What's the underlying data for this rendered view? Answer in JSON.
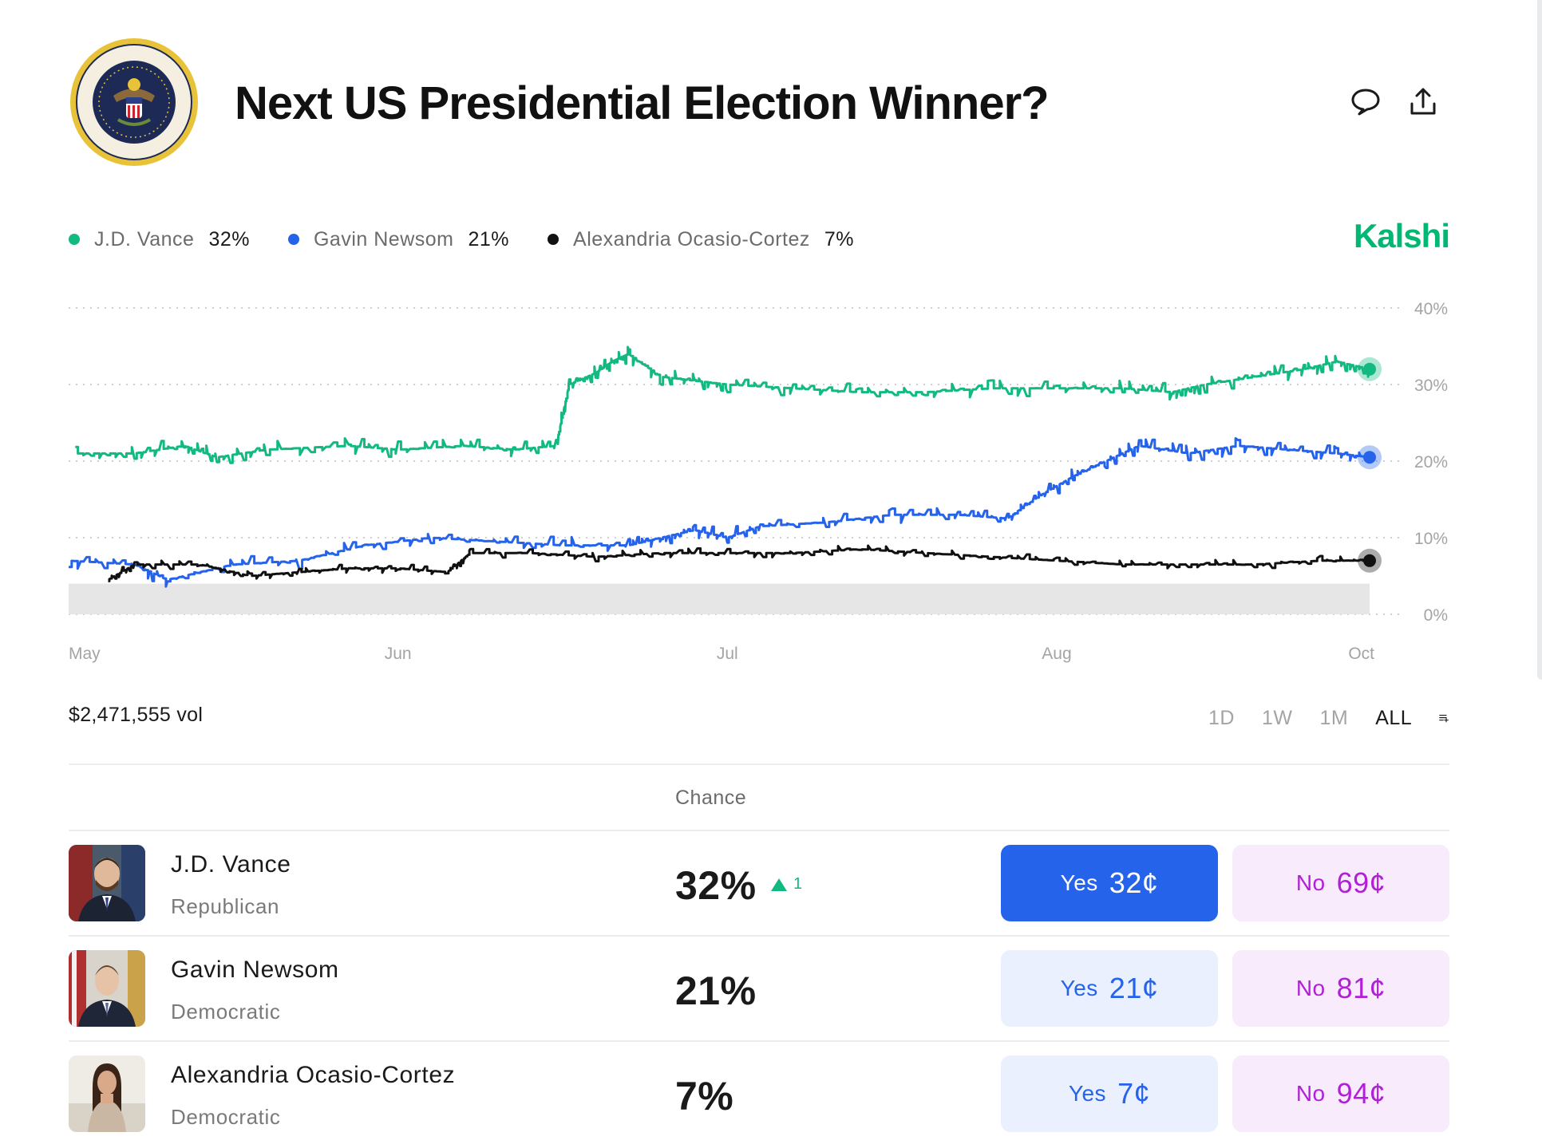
{
  "market": {
    "title": "Next US Presidential Election Winner?",
    "brand": "Kalshi",
    "volume": "$2,471,555 vol"
  },
  "icons": {
    "seal": "presidential-seal",
    "comment": "comment-icon",
    "share": "share-icon",
    "add_to_list": "add-to-list-icon"
  },
  "colors": {
    "vance": "#12b981",
    "newsom": "#2563eb",
    "aoc": "#111111",
    "brand": "#00b874",
    "yes": "#2563eb",
    "no": "#b11fd6"
  },
  "legend": [
    {
      "name": "J.D. Vance",
      "value": "32%",
      "color": "#12b981"
    },
    {
      "name": "Gavin Newsom",
      "value": "21%",
      "color": "#2563eb"
    },
    {
      "name": "Alexandria Ocasio-Cortez",
      "value": "7%",
      "color": "#111111"
    }
  ],
  "time_ranges": [
    "1D",
    "1W",
    "1M",
    "ALL"
  ],
  "active_range": "ALL",
  "table": {
    "chance_header": "Chance",
    "rows": [
      {
        "name": "J.D. Vance",
        "party": "Republican",
        "chance": "32%",
        "delta": "1",
        "yes_label": "Yes",
        "yes_price": "32¢",
        "no_label": "No",
        "no_price": "69¢"
      },
      {
        "name": "Gavin Newsom",
        "party": "Democratic",
        "chance": "21%",
        "delta": "",
        "yes_label": "Yes",
        "yes_price": "21¢",
        "no_label": "No",
        "no_price": "81¢"
      },
      {
        "name": "Alexandria Ocasio-Cortez",
        "party": "Democratic",
        "chance": "7%",
        "delta": "",
        "yes_label": "Yes",
        "yes_price": "7¢",
        "no_label": "No",
        "no_price": "94¢"
      }
    ]
  },
  "chart_data": {
    "type": "line",
    "title": "",
    "xlabel": "",
    "ylabel": "",
    "ylim": [
      0,
      40
    ],
    "yticks": [
      "0%",
      "10%",
      "20%",
      "30%",
      "40%"
    ],
    "x": [
      0,
      0.5,
      1,
      1.5,
      2,
      2.5,
      3,
      3.5,
      3.95
    ],
    "xlabels": [
      "May",
      "Jun",
      "Jul",
      "Aug",
      "Oct"
    ],
    "xlabel_positions": [
      0,
      1,
      2,
      3,
      3.95
    ],
    "series": [
      {
        "name": "J.D. Vance",
        "color": "#12b981",
        "points": [
          [
            0.02,
            21
          ],
          [
            0.2,
            21
          ],
          [
            0.35,
            22
          ],
          [
            0.45,
            20.5
          ],
          [
            0.6,
            21.5
          ],
          [
            0.85,
            22
          ],
          [
            1.0,
            21.5
          ],
          [
            1.2,
            22
          ],
          [
            1.35,
            21.5
          ],
          [
            1.48,
            22
          ],
          [
            1.52,
            30
          ],
          [
            1.6,
            31.5
          ],
          [
            1.65,
            33
          ],
          [
            1.7,
            34
          ],
          [
            1.8,
            31
          ],
          [
            1.9,
            30.5
          ],
          [
            2.0,
            30
          ],
          [
            2.2,
            29.5
          ],
          [
            2.4,
            29
          ],
          [
            2.6,
            29
          ],
          [
            2.8,
            29.5
          ],
          [
            3.0,
            29.5
          ],
          [
            3.2,
            29.5
          ],
          [
            3.35,
            29
          ],
          [
            3.45,
            30
          ],
          [
            3.6,
            31
          ],
          [
            3.75,
            32
          ],
          [
            3.85,
            33
          ],
          [
            3.95,
            32
          ]
        ]
      },
      {
        "name": "Gavin Newsom",
        "color": "#2563eb",
        "points": [
          [
            0.0,
            7
          ],
          [
            0.2,
            6.5
          ],
          [
            0.3,
            4.5
          ],
          [
            0.5,
            6.5
          ],
          [
            0.7,
            7
          ],
          [
            0.9,
            9
          ],
          [
            1.1,
            10
          ],
          [
            1.3,
            9.5
          ],
          [
            1.5,
            9
          ],
          [
            1.7,
            9
          ],
          [
            1.8,
            10
          ],
          [
            1.9,
            11
          ],
          [
            2.0,
            10
          ],
          [
            2.1,
            11.5
          ],
          [
            2.3,
            12
          ],
          [
            2.5,
            13
          ],
          [
            2.7,
            13
          ],
          [
            2.85,
            12.5
          ],
          [
            2.95,
            15.5
          ],
          [
            3.05,
            18
          ],
          [
            3.15,
            20
          ],
          [
            3.25,
            22
          ],
          [
            3.4,
            21
          ],
          [
            3.55,
            22
          ],
          [
            3.7,
            21.5
          ],
          [
            3.85,
            21
          ],
          [
            3.95,
            20.5
          ]
        ]
      },
      {
        "name": "Alexandria Ocasio-Cortez",
        "color": "#111111",
        "points": [
          [
            0.12,
            4.5
          ],
          [
            0.2,
            6.5
          ],
          [
            0.4,
            6.5
          ],
          [
            0.55,
            5
          ],
          [
            0.7,
            5.5
          ],
          [
            0.85,
            6
          ],
          [
            1.0,
            6
          ],
          [
            1.15,
            5.5
          ],
          [
            1.22,
            8
          ],
          [
            1.4,
            8
          ],
          [
            1.6,
            7.5
          ],
          [
            1.8,
            8
          ],
          [
            2.0,
            8
          ],
          [
            2.2,
            8
          ],
          [
            2.4,
            8.5
          ],
          [
            2.6,
            8
          ],
          [
            2.8,
            7.5
          ],
          [
            3.0,
            7
          ],
          [
            3.2,
            6.5
          ],
          [
            3.4,
            6.5
          ],
          [
            3.6,
            6.5
          ],
          [
            3.8,
            7
          ],
          [
            3.95,
            7
          ]
        ]
      }
    ],
    "grid": true,
    "legend": "top-left"
  }
}
